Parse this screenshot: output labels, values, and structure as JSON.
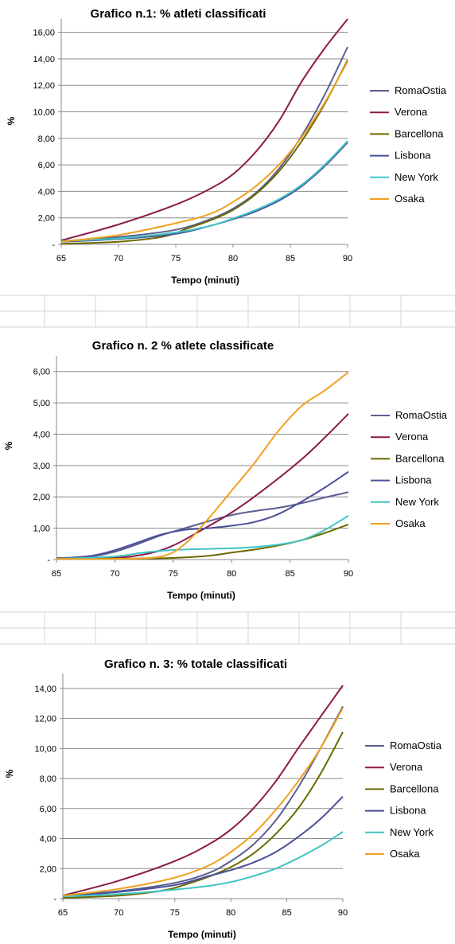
{
  "chart_data": [
    {
      "type": "line",
      "title": "Grafico n.1: % atleti classificati",
      "xlabel": "Tempo (minuti)",
      "ylabel": "%",
      "xlim": [
        65,
        90
      ],
      "ylim": [
        0,
        17
      ],
      "x_ticks": [
        "65",
        "70",
        "75",
        "80",
        "85",
        "90"
      ],
      "y_ticks": [
        "-",
        "2,00",
        "4,00",
        "6,00",
        "8,00",
        "10,00",
        "12,00",
        "14,00",
        "16,00"
      ],
      "grid": "horizontal",
      "legend": "right",
      "series": [
        {
          "name": "RomaOstia",
          "color": "#5b5e8f",
          "points": [
            [
              65,
              0.25
            ],
            [
              70,
              0.55
            ],
            [
              75,
              1.1
            ],
            [
              78,
              1.9
            ],
            [
              80,
              2.7
            ],
            [
              82,
              3.9
            ],
            [
              84,
              5.7
            ],
            [
              86,
              8.2
            ],
            [
              88,
              11.3
            ],
            [
              90,
              14.9
            ]
          ]
        },
        {
          "name": "Verona",
          "color": "#8b1a4a",
          "points": [
            [
              65,
              0.3
            ],
            [
              70,
              1.5
            ],
            [
              75,
              3.0
            ],
            [
              78,
              4.2
            ],
            [
              80,
              5.3
            ],
            [
              82,
              7.0
            ],
            [
              84,
              9.3
            ],
            [
              86,
              12.3
            ],
            [
              88,
              14.8
            ],
            [
              90,
              17.0
            ]
          ]
        },
        {
          "name": "Barcellona",
          "color": "#6b6b00",
          "points": [
            [
              65,
              0.05
            ],
            [
              70,
              0.2
            ],
            [
              74,
              0.6
            ],
            [
              76,
              1.2
            ],
            [
              78,
              1.8
            ],
            [
              80,
              2.6
            ],
            [
              82,
              3.8
            ],
            [
              84,
              5.5
            ],
            [
              86,
              7.8
            ],
            [
              88,
              10.6
            ],
            [
              90,
              13.9
            ]
          ]
        },
        {
          "name": "Lisbona",
          "color": "#4a4f99",
          "points": [
            [
              65,
              0.2
            ],
            [
              70,
              0.4
            ],
            [
              75,
              0.8
            ],
            [
              78,
              1.4
            ],
            [
              80,
              1.9
            ],
            [
              82,
              2.5
            ],
            [
              84,
              3.3
            ],
            [
              86,
              4.4
            ],
            [
              88,
              5.9
            ],
            [
              90,
              7.7
            ]
          ]
        },
        {
          "name": "New York",
          "color": "#3fc4c4",
          "points": [
            [
              65,
              0.25
            ],
            [
              70,
              0.45
            ],
            [
              75,
              0.9
            ],
            [
              78,
              1.4
            ],
            [
              80,
              1.95
            ],
            [
              82,
              2.6
            ],
            [
              84,
              3.4
            ],
            [
              86,
              4.5
            ],
            [
              88,
              6.0
            ],
            [
              90,
              7.8
            ]
          ]
        },
        {
          "name": "Osaka",
          "color": "#f0a020",
          "points": [
            [
              65,
              0.2
            ],
            [
              70,
              0.7
            ],
            [
              75,
              1.6
            ],
            [
              78,
              2.3
            ],
            [
              80,
              3.2
            ],
            [
              82,
              4.4
            ],
            [
              84,
              6.0
            ],
            [
              86,
              8.1
            ],
            [
              88,
              10.7
            ],
            [
              90,
              13.8
            ]
          ]
        }
      ]
    },
    {
      "type": "line",
      "title": "Grafico n. 2 % atlete classificate",
      "xlabel": "Tempo (minuti)",
      "ylabel": "%",
      "xlim": [
        65,
        90
      ],
      "ylim": [
        0,
        6.5
      ],
      "x_ticks": [
        "65",
        "70",
        "75",
        "80",
        "85",
        "90"
      ],
      "y_ticks": [
        "-",
        "1,00",
        "2,00",
        "3,00",
        "4,00",
        "5,00",
        "6,00"
      ],
      "grid": "horizontal",
      "legend": "right",
      "series": [
        {
          "name": "RomaOstia",
          "color": "#5b5e8f",
          "points": [
            [
              65,
              0.03
            ],
            [
              68,
              0.1
            ],
            [
              70,
              0.25
            ],
            [
              72,
              0.5
            ],
            [
              74,
              0.78
            ],
            [
              76,
              1.0
            ],
            [
              78,
              1.22
            ],
            [
              80,
              1.42
            ],
            [
              82,
              1.55
            ],
            [
              84,
              1.65
            ],
            [
              86,
              1.8
            ],
            [
              88,
              1.98
            ],
            [
              90,
              2.15
            ]
          ]
        },
        {
          "name": "Verona",
          "color": "#8b1a4a",
          "points": [
            [
              65,
              0.02
            ],
            [
              70,
              0.05
            ],
            [
              73,
              0.2
            ],
            [
              75,
              0.45
            ],
            [
              77,
              0.85
            ],
            [
              80,
              1.5
            ],
            [
              83,
              2.3
            ],
            [
              86,
              3.2
            ],
            [
              88,
              3.9
            ],
            [
              90,
              4.65
            ]
          ]
        },
        {
          "name": "Barcellona",
          "color": "#6b6b00",
          "points": [
            [
              65,
              0.05
            ],
            [
              70,
              0.03
            ],
            [
              75,
              0.05
            ],
            [
              78,
              0.12
            ],
            [
              80,
              0.22
            ],
            [
              82,
              0.32
            ],
            [
              84,
              0.45
            ],
            [
              86,
              0.62
            ],
            [
              88,
              0.85
            ],
            [
              90,
              1.12
            ]
          ]
        },
        {
          "name": "Lisbona",
          "color": "#4a4f99",
          "points": [
            [
              65,
              0.03
            ],
            [
              68,
              0.12
            ],
            [
              70,
              0.3
            ],
            [
              72,
              0.55
            ],
            [
              74,
              0.8
            ],
            [
              76,
              0.95
            ],
            [
              78,
              1.0
            ],
            [
              80,
              1.08
            ],
            [
              82,
              1.2
            ],
            [
              84,
              1.45
            ],
            [
              86,
              1.85
            ],
            [
              88,
              2.3
            ],
            [
              90,
              2.8
            ]
          ]
        },
        {
          "name": "New York",
          "color": "#3fc4c4",
          "points": [
            [
              65,
              0.02
            ],
            [
              70,
              0.1
            ],
            [
              72,
              0.2
            ],
            [
              74,
              0.28
            ],
            [
              76,
              0.32
            ],
            [
              78,
              0.34
            ],
            [
              80,
              0.36
            ],
            [
              82,
              0.4
            ],
            [
              84,
              0.48
            ],
            [
              86,
              0.62
            ],
            [
              88,
              0.95
            ],
            [
              90,
              1.4
            ]
          ]
        },
        {
          "name": "Osaka",
          "color": "#f0a020",
          "points": [
            [
              65,
              0.02
            ],
            [
              70,
              0.02
            ],
            [
              74,
              0.1
            ],
            [
              76,
              0.5
            ],
            [
              78,
              1.3
            ],
            [
              80,
              2.2
            ],
            [
              82,
              3.1
            ],
            [
              84,
              4.1
            ],
            [
              86,
              4.9
            ],
            [
              88,
              5.4
            ],
            [
              90,
              5.98
            ]
          ]
        }
      ]
    },
    {
      "type": "line",
      "title": "Grafico n. 3: % totale classificati",
      "xlabel": "Tempo (minuti)",
      "ylabel": "%",
      "xlim": [
        65,
        90
      ],
      "ylim": [
        0,
        15
      ],
      "x_ticks": [
        "65",
        "70",
        "75",
        "80",
        "85",
        "90"
      ],
      "y_ticks": [
        "-",
        "2,00",
        "4,00",
        "6,00",
        "8,00",
        "10,00",
        "12,00",
        "14,00"
      ],
      "grid": "horizontal",
      "legend": "right",
      "series": [
        {
          "name": "RomaOstia",
          "color": "#5b5e8f",
          "points": [
            [
              65,
              0.2
            ],
            [
              70,
              0.5
            ],
            [
              75,
              1.05
            ],
            [
              78,
              1.7
            ],
            [
              80,
              2.5
            ],
            [
              82,
              3.6
            ],
            [
              84,
              5.2
            ],
            [
              86,
              7.4
            ],
            [
              88,
              10.0
            ],
            [
              90,
              12.8
            ]
          ]
        },
        {
          "name": "Verona",
          "color": "#8b1a4a",
          "points": [
            [
              65,
              0.2
            ],
            [
              70,
              1.2
            ],
            [
              75,
              2.5
            ],
            [
              78,
              3.6
            ],
            [
              80,
              4.6
            ],
            [
              82,
              6.0
            ],
            [
              84,
              7.8
            ],
            [
              86,
              10.0
            ],
            [
              88,
              12.1
            ],
            [
              90,
              14.2
            ]
          ]
        },
        {
          "name": "Barcellona",
          "color": "#6b6b00",
          "points": [
            [
              65,
              0.05
            ],
            [
              70,
              0.2
            ],
            [
              74,
              0.55
            ],
            [
              76,
              0.95
            ],
            [
              78,
              1.45
            ],
            [
              80,
              2.1
            ],
            [
              82,
              3.0
            ],
            [
              84,
              4.3
            ],
            [
              86,
              6.0
            ],
            [
              88,
              8.3
            ],
            [
              90,
              11.1
            ]
          ]
        },
        {
          "name": "Lisbona",
          "color": "#4a4f99",
          "points": [
            [
              65,
              0.15
            ],
            [
              70,
              0.45
            ],
            [
              75,
              0.9
            ],
            [
              78,
              1.5
            ],
            [
              80,
              1.9
            ],
            [
              82,
              2.4
            ],
            [
              84,
              3.1
            ],
            [
              86,
              4.1
            ],
            [
              88,
              5.3
            ],
            [
              90,
              6.8
            ]
          ]
        },
        {
          "name": "New York",
          "color": "#3fc4c4",
          "points": [
            [
              65,
              0.15
            ],
            [
              70,
              0.3
            ],
            [
              75,
              0.6
            ],
            [
              78,
              0.85
            ],
            [
              80,
              1.1
            ],
            [
              82,
              1.5
            ],
            [
              84,
              2.0
            ],
            [
              86,
              2.7
            ],
            [
              88,
              3.5
            ],
            [
              90,
              4.45
            ]
          ]
        },
        {
          "name": "Osaka",
          "color": "#f0a020",
          "points": [
            [
              65,
              0.2
            ],
            [
              70,
              0.65
            ],
            [
              75,
              1.4
            ],
            [
              78,
              2.2
            ],
            [
              80,
              3.1
            ],
            [
              82,
              4.3
            ],
            [
              84,
              5.9
            ],
            [
              86,
              7.8
            ],
            [
              88,
              10.0
            ],
            [
              90,
              12.7
            ]
          ]
        }
      ]
    }
  ]
}
